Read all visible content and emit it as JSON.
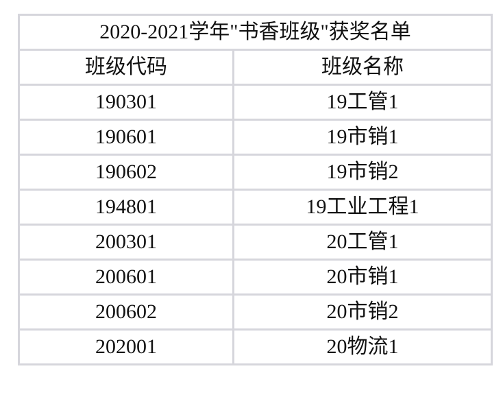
{
  "title": "2020-2021学年\"书香班级\"获奖名单",
  "headers": [
    "班级代码",
    "班级名称"
  ],
  "rows": [
    [
      "190301",
      "19工管1"
    ],
    [
      "190601",
      "19市销1"
    ],
    [
      "190602",
      "19市销2"
    ],
    [
      "194801",
      "19工业工程1"
    ],
    [
      "200301",
      "20工管1"
    ],
    [
      "200601",
      "20市销1"
    ],
    [
      "200602",
      "20市销2"
    ],
    [
      "202001",
      "20物流1"
    ]
  ]
}
